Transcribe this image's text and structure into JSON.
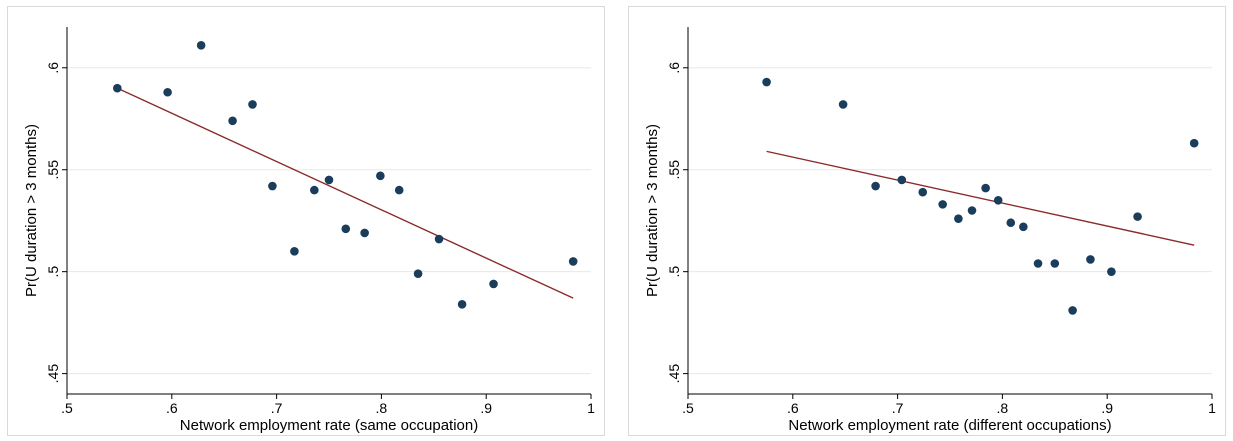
{
  "chart_data": [
    {
      "type": "scatter",
      "title": "",
      "xlabel": "Network employment rate (same occupation)",
      "ylabel": "Pr(U duration > 3 months)",
      "xlim": [
        0.5,
        1.0
      ],
      "ylim": [
        0.44,
        0.62
      ],
      "xticks": [
        ".5",
        ".6",
        ".7",
        ".8",
        ".9",
        "1"
      ],
      "xtick_values": [
        0.5,
        0.6,
        0.7,
        0.8,
        0.9,
        1.0
      ],
      "yticks": [
        ".45",
        ".5",
        ".55",
        ".6"
      ],
      "ytick_values": [
        0.45,
        0.5,
        0.55,
        0.6
      ],
      "grid": true,
      "points": [
        {
          "x": 0.548,
          "y": 0.59
        },
        {
          "x": 0.596,
          "y": 0.588
        },
        {
          "x": 0.628,
          "y": 0.611
        },
        {
          "x": 0.658,
          "y": 0.574
        },
        {
          "x": 0.677,
          "y": 0.582
        },
        {
          "x": 0.696,
          "y": 0.542
        },
        {
          "x": 0.717,
          "y": 0.51
        },
        {
          "x": 0.736,
          "y": 0.54
        },
        {
          "x": 0.75,
          "y": 0.545
        },
        {
          "x": 0.766,
          "y": 0.521
        },
        {
          "x": 0.784,
          "y": 0.519
        },
        {
          "x": 0.799,
          "y": 0.547
        },
        {
          "x": 0.817,
          "y": 0.54
        },
        {
          "x": 0.835,
          "y": 0.499
        },
        {
          "x": 0.855,
          "y": 0.516
        },
        {
          "x": 0.877,
          "y": 0.484
        },
        {
          "x": 0.907,
          "y": 0.494
        },
        {
          "x": 0.983,
          "y": 0.505
        }
      ],
      "fit_line": {
        "x": [
          0.548,
          0.983
        ],
        "y": [
          0.59,
          0.487
        ]
      },
      "colors": {
        "points": "#1a3d5c",
        "fit": "#8b2a2a",
        "grid": "#e8e8e8"
      }
    },
    {
      "type": "scatter",
      "title": "",
      "xlabel": "Network employment rate (different occupations)",
      "ylabel": "Pr(U duration > 3 months)",
      "xlim": [
        0.5,
        1.0
      ],
      "ylim": [
        0.44,
        0.62
      ],
      "xticks": [
        ".5",
        ".6",
        ".7",
        ".8",
        ".9",
        "1"
      ],
      "xtick_values": [
        0.5,
        0.6,
        0.7,
        0.8,
        0.9,
        1.0
      ],
      "yticks": [
        ".45",
        ".5",
        ".55",
        ".6"
      ],
      "ytick_values": [
        0.45,
        0.5,
        0.55,
        0.6
      ],
      "grid": true,
      "points": [
        {
          "x": 0.575,
          "y": 0.593
        },
        {
          "x": 0.648,
          "y": 0.582
        },
        {
          "x": 0.679,
          "y": 0.542
        },
        {
          "x": 0.704,
          "y": 0.545
        },
        {
          "x": 0.724,
          "y": 0.539
        },
        {
          "x": 0.743,
          "y": 0.533
        },
        {
          "x": 0.758,
          "y": 0.526
        },
        {
          "x": 0.771,
          "y": 0.53
        },
        {
          "x": 0.784,
          "y": 0.541
        },
        {
          "x": 0.796,
          "y": 0.535
        },
        {
          "x": 0.808,
          "y": 0.524
        },
        {
          "x": 0.82,
          "y": 0.522
        },
        {
          "x": 0.834,
          "y": 0.504
        },
        {
          "x": 0.85,
          "y": 0.504
        },
        {
          "x": 0.867,
          "y": 0.481
        },
        {
          "x": 0.884,
          "y": 0.506
        },
        {
          "x": 0.904,
          "y": 0.5
        },
        {
          "x": 0.929,
          "y": 0.527
        },
        {
          "x": 0.983,
          "y": 0.563
        }
      ],
      "fit_line": {
        "x": [
          0.575,
          0.983
        ],
        "y": [
          0.559,
          0.513
        ]
      },
      "colors": {
        "points": "#1a3d5c",
        "fit": "#8b2a2a",
        "grid": "#e8e8e8"
      }
    }
  ]
}
